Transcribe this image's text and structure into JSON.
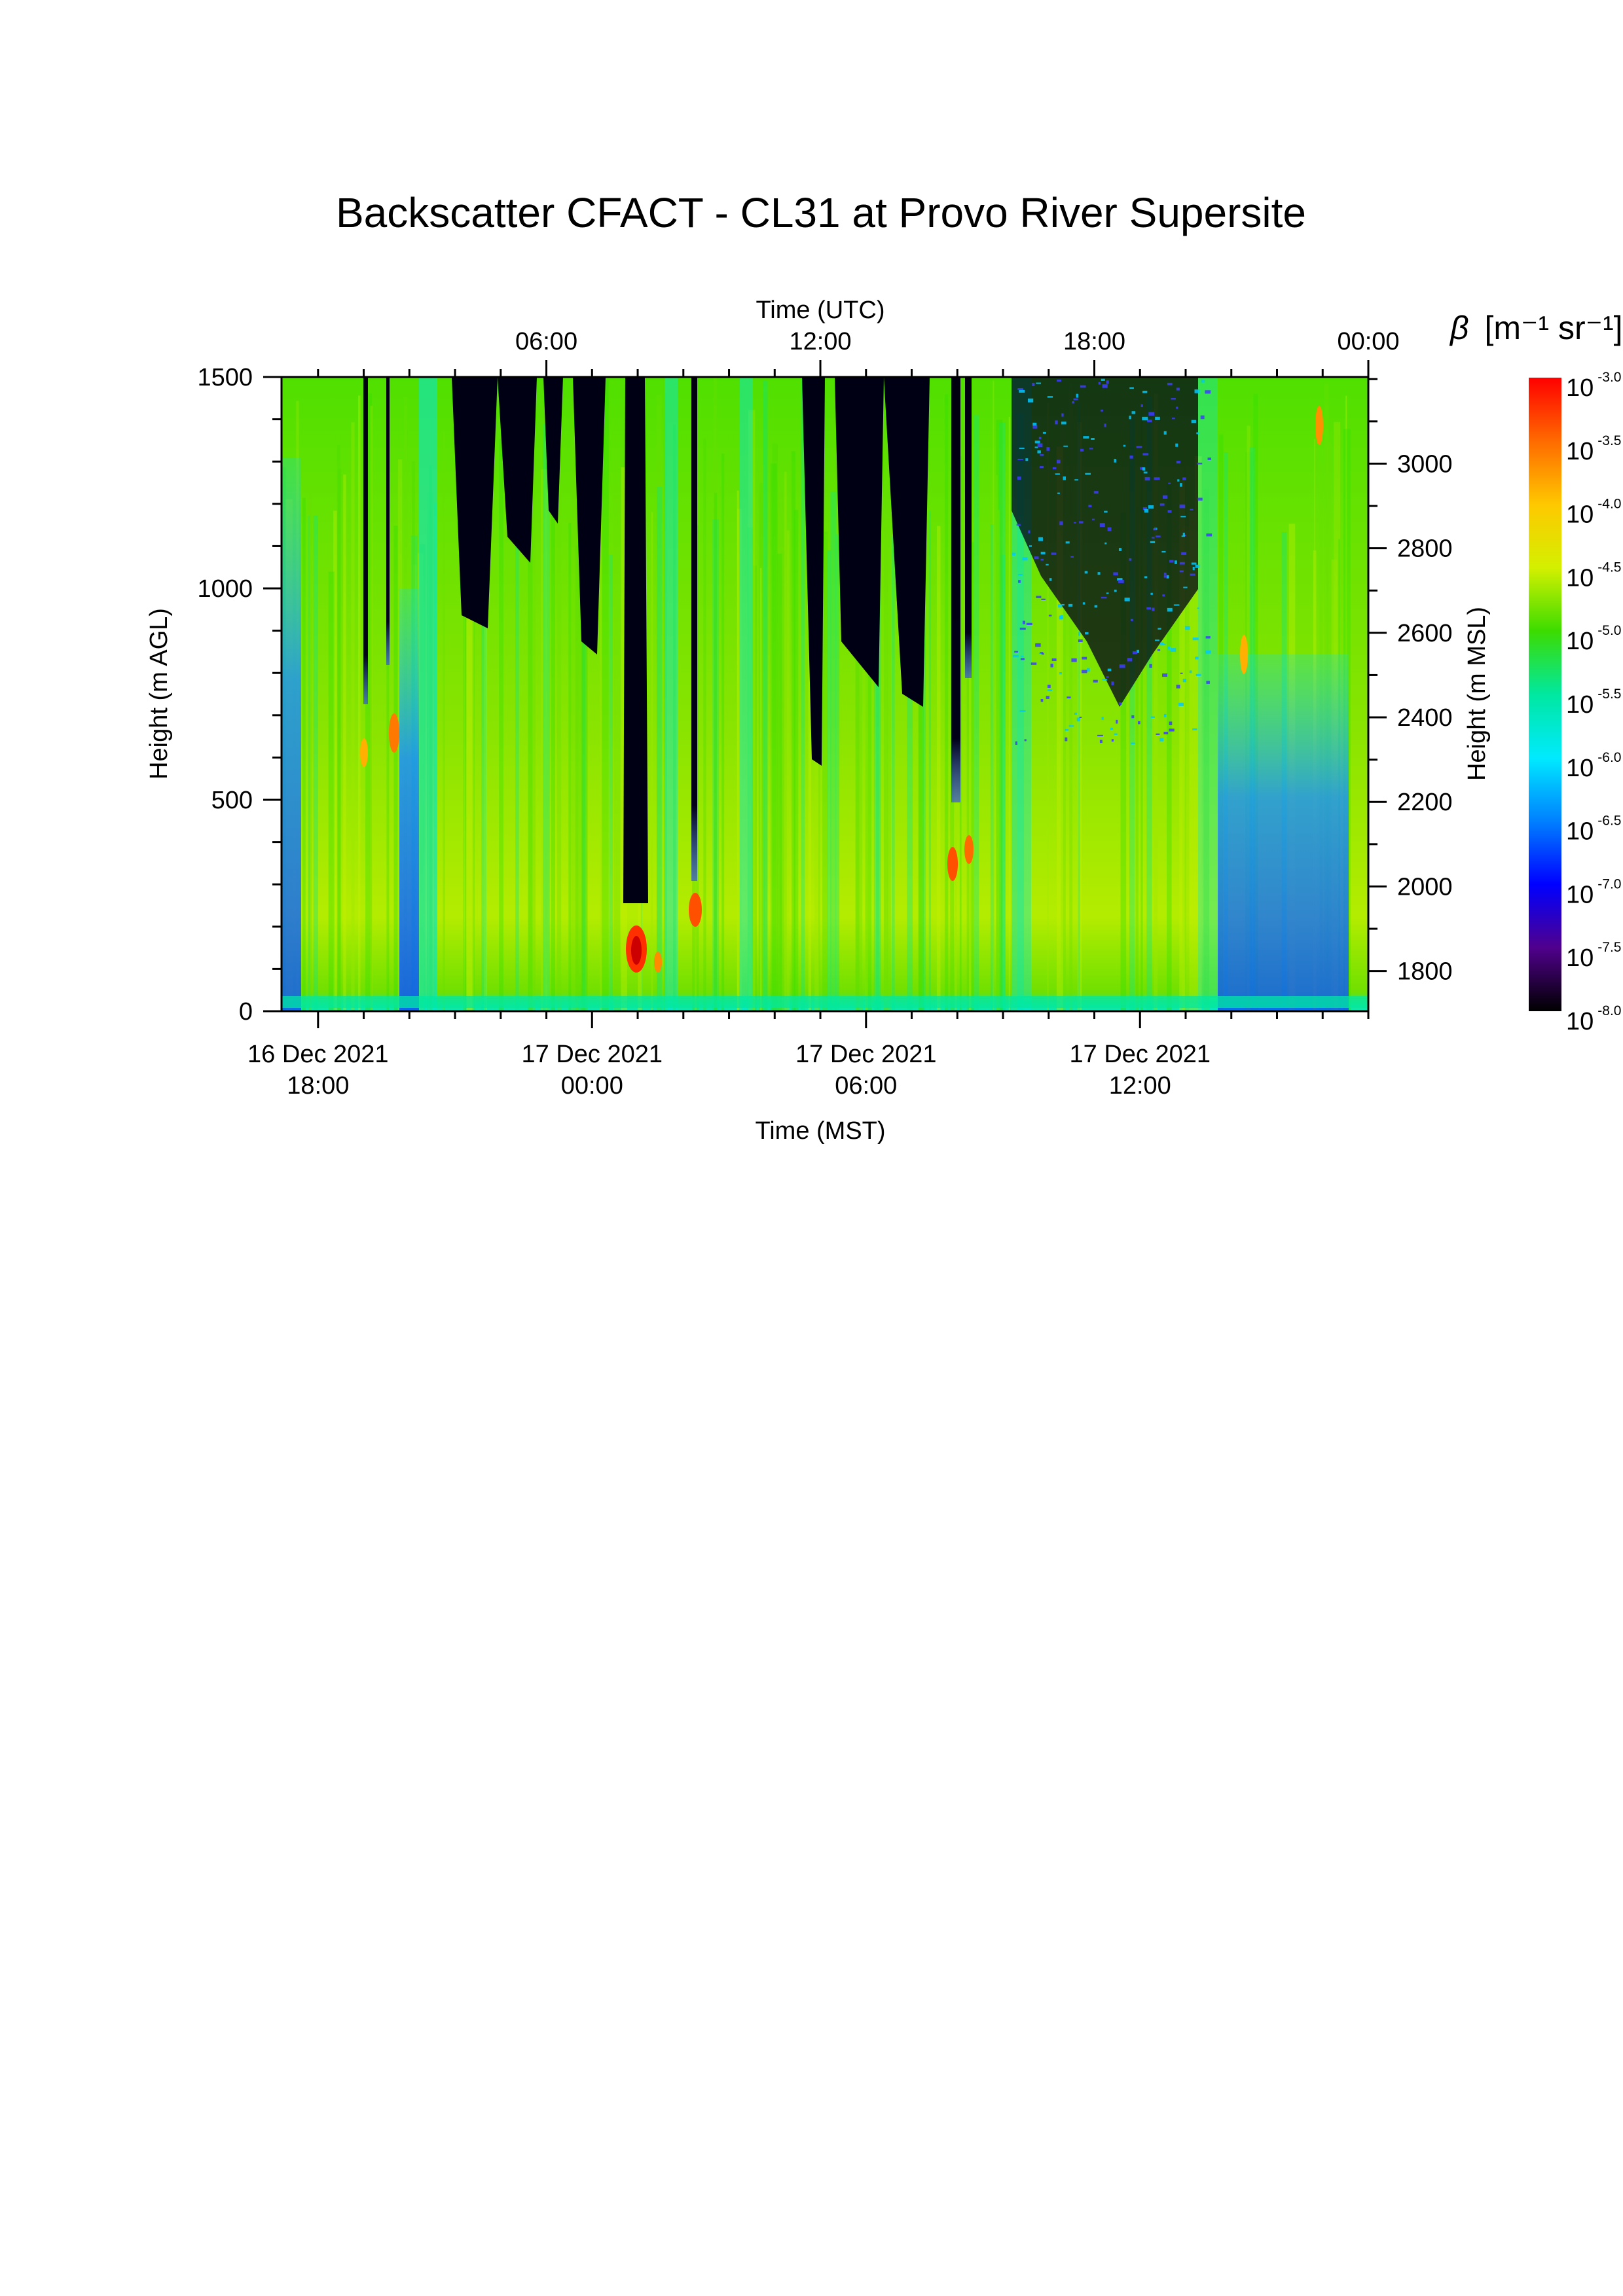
{
  "chart_data": {
    "type": "heatmap",
    "title": "Backscatter CFACT - CL31 at Provo River Supersite",
    "top_axis": {
      "label": "Time (UTC)",
      "ticks": [
        {
          "hours": 6,
          "label": "06:00"
        },
        {
          "hours": 12,
          "label": "12:00"
        },
        {
          "hours": 18,
          "label": "18:00"
        },
        {
          "hours": 24,
          "label": "00:00"
        }
      ]
    },
    "bottom_axis": {
      "label": "Time (MST)",
      "ticks": [
        {
          "hours": 18,
          "line1": "16 Dec 2021",
          "line2": "18:00"
        },
        {
          "hours": 24,
          "line1": "17 Dec 2021",
          "line2": "00:00"
        },
        {
          "hours": 30,
          "line1": "17 Dec 2021",
          "line2": "06:00"
        },
        {
          "hours": 36,
          "line1": "17 Dec 2021",
          "line2": "12:00"
        }
      ],
      "range_hours": [
        17.2,
        41.0
      ]
    },
    "left_axis": {
      "label": "Height (m AGL)",
      "range": [
        0,
        1500
      ],
      "ticks": [
        0,
        500,
        1000,
        1500
      ],
      "minor_step": 100
    },
    "right_axis": {
      "label": "Height (m MSL)",
      "range": [
        1705,
        3205
      ],
      "ticks": [
        1800,
        2000,
        2200,
        2400,
        2600,
        2800,
        3000
      ],
      "minor_step": 100
    },
    "colorbar": {
      "label_symbol": "β",
      "label_units": "[m⁻¹ sr⁻¹]",
      "scale": "log10",
      "ticks": [
        {
          "base": "10",
          "exp": "-3.0"
        },
        {
          "base": "10",
          "exp": "-3.5"
        },
        {
          "base": "10",
          "exp": "-4.0"
        },
        {
          "base": "10",
          "exp": "-4.5"
        },
        {
          "base": "10",
          "exp": "-5.0"
        },
        {
          "base": "10",
          "exp": "-5.5"
        },
        {
          "base": "10",
          "exp": "-6.0"
        },
        {
          "base": "10",
          "exp": "-6.5"
        },
        {
          "base": "10",
          "exp": "-7.0"
        },
        {
          "base": "10",
          "exp": "-7.5"
        },
        {
          "base": "10",
          "exp": "-8.0"
        }
      ],
      "colors": [
        "#ff0000",
        "#ff6a00",
        "#ffc800",
        "#d4f000",
        "#3cdc00",
        "#00e8a0",
        "#00eaff",
        "#0080ff",
        "#0000ff",
        "#50008c",
        "#000000"
      ]
    }
  }
}
